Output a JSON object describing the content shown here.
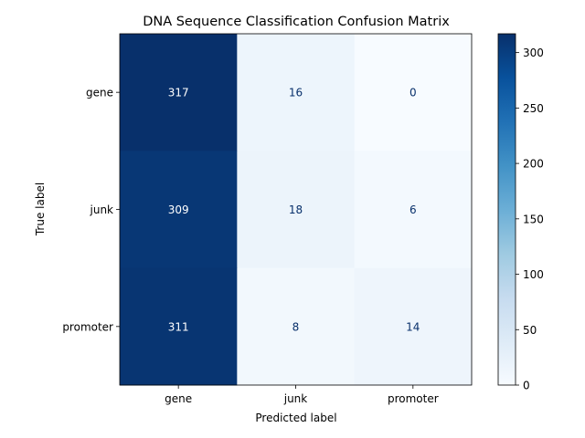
{
  "chart_data": {
    "type": "heatmap",
    "title": "DNA Sequence Classification Confusion Matrix",
    "xlabel": "Predicted label",
    "ylabel": "True label",
    "x_categories": [
      "gene",
      "junk",
      "promoter"
    ],
    "y_categories": [
      "gene",
      "junk",
      "promoter"
    ],
    "values": [
      [
        317,
        16,
        0
      ],
      [
        309,
        18,
        6
      ],
      [
        311,
        8,
        14
      ]
    ],
    "colormap": "Blues",
    "colorbar": {
      "range": [
        0,
        317
      ],
      "ticks": [
        0,
        50,
        100,
        150,
        200,
        250,
        300
      ]
    },
    "text_colors": {
      "dark_cell": "#ffffff",
      "light_cell": "#08306b"
    }
  }
}
